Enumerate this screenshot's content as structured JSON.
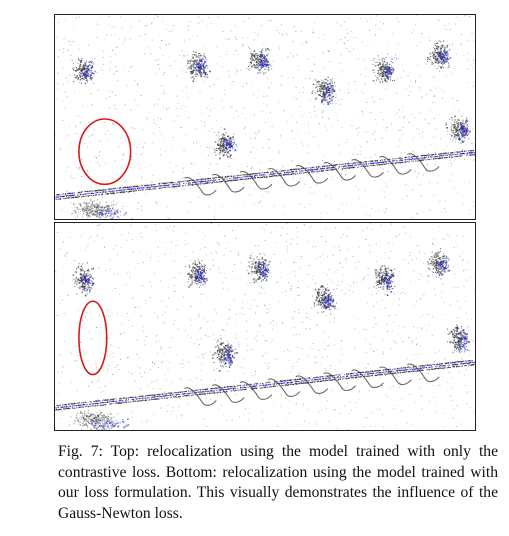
{
  "figure": {
    "panels": [
      {
        "position": "top",
        "highlight": "ellipse"
      },
      {
        "position": "bottom",
        "highlight": "ellipse"
      }
    ],
    "colors": {
      "map_points": "#3a3a3a",
      "query_points": "#2a2ad8",
      "highlight": "#d81818"
    }
  },
  "caption": {
    "text": "Fig. 7: Top: relocalization using the model trained with only the contrastive loss. Bottom: relocalization using the model trained with our loss formulation. This visually demonstrates the influence of the Gauss-Newton loss."
  }
}
